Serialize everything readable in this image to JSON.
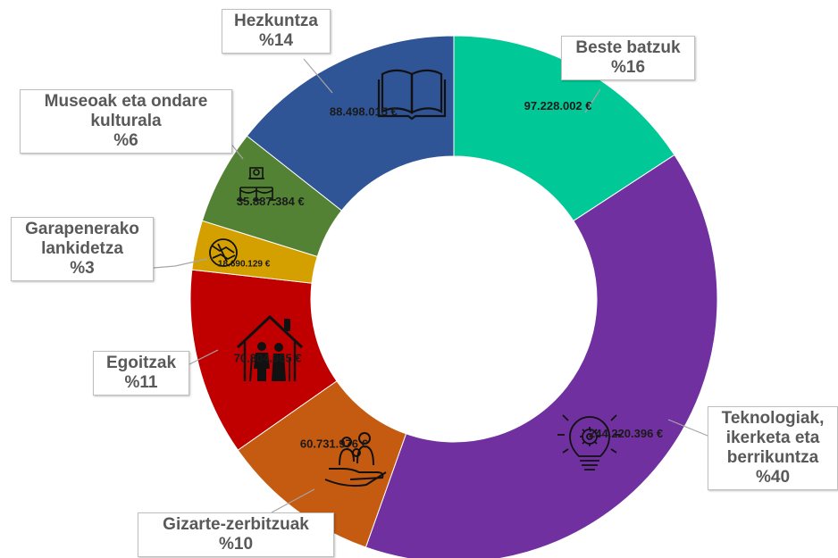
{
  "chart_data": {
    "type": "pie",
    "variant": "donut",
    "slices": [
      {
        "label": "Beste batzuk",
        "percent_label": "%16",
        "value": 97228002,
        "value_label": "97.228.002 €",
        "color": "#00c896",
        "icon": "none"
      },
      {
        "label": "Teknologiak, ikerketa eta berrikuntza",
        "percent_label": "%40",
        "value": 244220396,
        "value_label": "244.220.396 €",
        "color": "#7030a0",
        "icon": "lightbulb-gear-icon"
      },
      {
        "label": "Gizarte-zerbitzuak",
        "percent_label": "%10",
        "value": 60731976,
        "value_label": "60.731.976 €",
        "color": "#c55a11",
        "icon": "hand-family-icon"
      },
      {
        "label": "Egoitzak",
        "percent_label": "%11",
        "value": 70804965,
        "value_label": "70.804.965 €",
        "color": "#c00000",
        "icon": "house-elderly-icon"
      },
      {
        "label": "Garapenerako lankidetza",
        "percent_label": "%3",
        "value": 18690129,
        "value_label": "18.690.129 €",
        "color": "#d4a000",
        "icon": "handshake-icon"
      },
      {
        "label": "Museoak eta ondare kulturala",
        "percent_label": "%6",
        "value": 35887384,
        "value_label": "35.887.384 €",
        "color": "#548235",
        "icon": "museum-exhibit-icon"
      },
      {
        "label": "Hezkuntza",
        "percent_label": "%14",
        "value": 88498015,
        "value_label": "88.498.015 €",
        "color": "#2f5597",
        "icon": "open-book-icon"
      }
    ]
  },
  "callouts": {
    "beste": {
      "lines": [
        "Beste batzuk",
        "%16"
      ]
    },
    "teknologiak": {
      "lines": [
        "Teknologiak,",
        "ikerketa eta",
        "berrikuntza",
        "%40"
      ]
    },
    "gizarte": {
      "lines": [
        "Gizarte-zerbitzuak",
        "%10"
      ]
    },
    "egoitzak": {
      "lines": [
        "Egoitzak",
        "%11"
      ]
    },
    "garapen": {
      "lines": [
        "Garapenerako",
        "lankidetza",
        "%3"
      ]
    },
    "museoak": {
      "lines": [
        "Museoak eta ondare",
        "kulturala",
        "%6"
      ]
    },
    "hezkuntza": {
      "lines": [
        "Hezkuntza",
        "%14"
      ]
    }
  }
}
